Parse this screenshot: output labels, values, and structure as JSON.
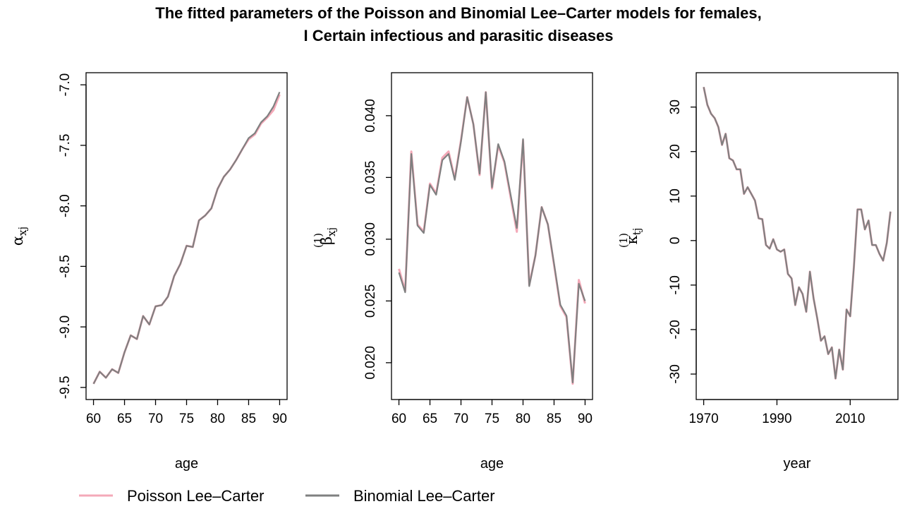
{
  "title_line1": "The fitted parameters of the Poisson and Binomial Lee–Carter models for females,",
  "title_line2": "I Certain infectious and parasitic diseases",
  "legend": [
    {
      "name": "Poisson Lee–Carter",
      "color": "#F4A9B8"
    },
    {
      "name": "Binomial Lee–Carter",
      "color": "#7F8080"
    }
  ],
  "chart_data": [
    {
      "type": "line",
      "xlabel": "age",
      "ylabel": "α",
      "ylabel_sub": "xj",
      "ylabel_sup": "",
      "xlim": [
        60,
        90
      ],
      "ylim": [
        -9.5,
        -7.0
      ],
      "xticks": [
        60,
        65,
        70,
        75,
        80,
        85,
        90
      ],
      "yticks": [
        -9.5,
        -9.0,
        -8.5,
        -8.0,
        -7.5,
        -7.0
      ],
      "ytick_labels": [
        "-9.5",
        "-9.0",
        "-8.5",
        "-8.0",
        "-7.5",
        "-7.0"
      ],
      "x": [
        60,
        61,
        62,
        63,
        64,
        65,
        66,
        67,
        68,
        69,
        70,
        71,
        72,
        73,
        74,
        75,
        76,
        77,
        78,
        79,
        80,
        81,
        82,
        83,
        84,
        85,
        86,
        87,
        88,
        89,
        90
      ],
      "series": [
        {
          "name": "Poisson Lee–Carter",
          "values": [
            -9.47,
            -9.37,
            -9.42,
            -9.35,
            -9.38,
            -9.21,
            -9.07,
            -9.1,
            -8.91,
            -8.98,
            -8.83,
            -8.82,
            -8.75,
            -8.58,
            -8.48,
            -8.33,
            -8.34,
            -8.12,
            -8.08,
            -8.02,
            -7.86,
            -7.76,
            -7.7,
            -7.62,
            -7.53,
            -7.45,
            -7.41,
            -7.32,
            -7.27,
            -7.21,
            -7.08
          ]
        },
        {
          "name": "Binomial Lee–Carter",
          "values": [
            -9.47,
            -9.37,
            -9.42,
            -9.35,
            -9.38,
            -9.21,
            -9.07,
            -9.1,
            -8.91,
            -8.98,
            -8.83,
            -8.82,
            -8.75,
            -8.58,
            -8.48,
            -8.33,
            -8.34,
            -8.12,
            -8.08,
            -8.02,
            -7.86,
            -7.76,
            -7.7,
            -7.62,
            -7.53,
            -7.44,
            -7.4,
            -7.31,
            -7.26,
            -7.18,
            -7.06
          ]
        }
      ]
    },
    {
      "type": "line",
      "xlabel": "age",
      "ylabel": "β",
      "ylabel_sub": "xj",
      "ylabel_sup": "(1)",
      "xlim": [
        60,
        90
      ],
      "ylim": [
        0.018,
        0.0425
      ],
      "xticks": [
        60,
        65,
        70,
        75,
        80,
        85,
        90
      ],
      "yticks": [
        0.02,
        0.025,
        0.03,
        0.035,
        0.04
      ],
      "ytick_labels": [
        "0.020",
        "0.025",
        "0.030",
        "0.035",
        "0.040"
      ],
      "x": [
        60,
        61,
        62,
        63,
        64,
        65,
        66,
        67,
        68,
        69,
        70,
        71,
        72,
        73,
        74,
        75,
        76,
        77,
        78,
        79,
        80,
        81,
        82,
        83,
        84,
        85,
        86,
        87,
        88,
        89,
        90
      ],
      "series": [
        {
          "name": "Poisson Lee–Carter",
          "values": [
            0.0276,
            0.0258,
            0.0371,
            0.0312,
            0.0306,
            0.0345,
            0.0337,
            0.0366,
            0.0371,
            0.0349,
            0.038,
            0.0415,
            0.0393,
            0.0352,
            0.0419,
            0.0341,
            0.0376,
            0.0362,
            0.0334,
            0.0306,
            0.038,
            0.0263,
            0.0287,
            0.0326,
            0.0312,
            0.0279,
            0.0246,
            0.0237,
            0.0183,
            0.0267,
            0.0248
          ]
        },
        {
          "name": "Binomial Lee–Carter",
          "values": [
            0.0273,
            0.0257,
            0.0369,
            0.0311,
            0.0305,
            0.0344,
            0.0336,
            0.0364,
            0.0369,
            0.0348,
            0.0379,
            0.0415,
            0.0393,
            0.0353,
            0.0419,
            0.0342,
            0.0377,
            0.0363,
            0.0336,
            0.0309,
            0.0381,
            0.0262,
            0.0287,
            0.0326,
            0.0312,
            0.028,
            0.0247,
            0.0238,
            0.0184,
            0.0264,
            0.025
          ]
        }
      ]
    },
    {
      "type": "line",
      "xlabel": "year",
      "ylabel": "κ",
      "ylabel_sub": "tj",
      "ylabel_sup": "(1)",
      "xlim": [
        1970,
        2021
      ],
      "ylim": [
        -33,
        35
      ],
      "xticks": [
        1970,
        1990,
        2010
      ],
      "yticks": [
        -30,
        -20,
        -10,
        0,
        10,
        20,
        30
      ],
      "ytick_labels": [
        "-30",
        "-20",
        "-10",
        "0",
        "10",
        "20",
        "30"
      ],
      "x": [
        1970,
        1971,
        1972,
        1973,
        1974,
        1975,
        1976,
        1977,
        1978,
        1979,
        1980,
        1981,
        1982,
        1983,
        1984,
        1985,
        1986,
        1987,
        1988,
        1989,
        1990,
        1991,
        1992,
        1993,
        1994,
        1995,
        1996,
        1997,
        1998,
        1999,
        2000,
        2001,
        2002,
        2003,
        2004,
        2005,
        2006,
        2007,
        2008,
        2009,
        2010,
        2011,
        2012,
        2013,
        2014,
        2015,
        2016,
        2017,
        2018,
        2019,
        2020,
        2021
      ],
      "series": [
        {
          "name": "Poisson Lee–Carter",
          "values": [
            34.5,
            30.5,
            28.5,
            27.5,
            25.5,
            21.5,
            24,
            18.5,
            18,
            16,
            16,
            10.5,
            12,
            10.5,
            9,
            5,
            4.8,
            -1,
            -1.8,
            0.3,
            -2,
            -2.5,
            -2,
            -7.5,
            -8.5,
            -14.5,
            -10.5,
            -12,
            -16,
            -7,
            -13,
            -17.5,
            -22.5,
            -21.5,
            -25.5,
            -24,
            -31,
            -24.5,
            -29,
            -15.5,
            -17,
            -6,
            7,
            7,
            2.5,
            4.5,
            -1,
            -1,
            -3,
            -4.5,
            -0.5,
            6.5
          ]
        },
        {
          "name": "Binomial Lee–Carter",
          "values": [
            34.5,
            30.5,
            28.5,
            27.5,
            25.5,
            21.5,
            24,
            18.5,
            18,
            16,
            16,
            10.5,
            12,
            10.5,
            9,
            5,
            4.8,
            -1,
            -1.8,
            0.3,
            -2,
            -2.5,
            -2,
            -7.5,
            -8.5,
            -14.5,
            -10.5,
            -12,
            -16,
            -7,
            -13,
            -17.5,
            -22.5,
            -21.5,
            -25.5,
            -24,
            -31,
            -24.5,
            -29,
            -15.5,
            -17,
            -6,
            7,
            7,
            2.5,
            4.5,
            -1,
            -1,
            -3,
            -4.5,
            -0.5,
            6.5
          ]
        }
      ]
    }
  ]
}
